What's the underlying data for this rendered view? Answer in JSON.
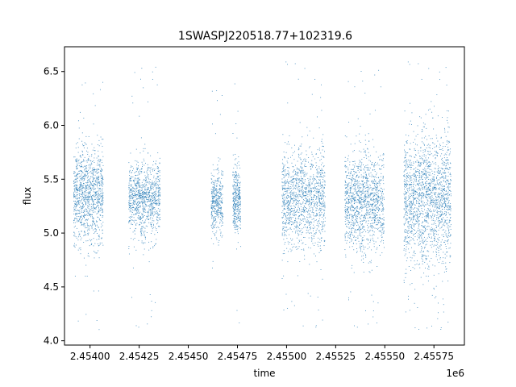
{
  "chart_data": {
    "type": "scatter",
    "title": "1SWASPJ220518.77+102319.6",
    "xlabel": "time",
    "ylabel": "flux",
    "x_offset_label": "1e6",
    "xlim": [
      2.45387,
      2.455905
    ],
    "ylim": [
      3.96,
      6.73
    ],
    "grid": false,
    "legend": "none",
    "color": "#1f77b4",
    "x_ticks": [
      {
        "value": 2.454,
        "label": "2.45400"
      },
      {
        "value": 2.45425,
        "label": "2.45425"
      },
      {
        "value": 2.4545,
        "label": "2.45450"
      },
      {
        "value": 2.45475,
        "label": "2.45475"
      },
      {
        "value": 2.455,
        "label": "2.45500"
      },
      {
        "value": 2.45525,
        "label": "2.45525"
      },
      {
        "value": 2.4555,
        "label": "2.45550"
      },
      {
        "value": 2.45575,
        "label": "2.45575"
      }
    ],
    "y_ticks": [
      {
        "value": 4.0,
        "label": "4.0"
      },
      {
        "value": 4.5,
        "label": "4.5"
      },
      {
        "value": 5.0,
        "label": "5.0"
      },
      {
        "value": 5.5,
        "label": "5.5"
      },
      {
        "value": 6.0,
        "label": "6.0"
      },
      {
        "value": 6.5,
        "label": "6.5"
      }
    ],
    "clusters": [
      {
        "x_range": [
          2.453915,
          2.454065
        ],
        "center": 5.35,
        "spread": 0.22,
        "min": 4.1,
        "max": 6.5,
        "points": 1100
      },
      {
        "x_range": [
          2.454195,
          2.454355
        ],
        "center": 5.32,
        "spread": 0.17,
        "min": 4.1,
        "max": 6.6,
        "points": 1000
      },
      {
        "x_range": [
          2.454615,
          2.454675
        ],
        "center": 5.28,
        "spread": 0.15,
        "min": 4.45,
        "max": 6.45,
        "points": 400
      },
      {
        "x_range": [
          2.454725,
          2.454765
        ],
        "center": 5.3,
        "spread": 0.16,
        "min": 4.1,
        "max": 6.6,
        "points": 350
      },
      {
        "x_range": [
          2.454975,
          2.455195
        ],
        "center": 5.32,
        "spread": 0.22,
        "min": 4.1,
        "max": 6.6,
        "points": 1300
      },
      {
        "x_range": [
          2.455295,
          2.455495
        ],
        "center": 5.28,
        "spread": 0.23,
        "min": 4.1,
        "max": 6.57,
        "points": 1300
      },
      {
        "x_range": [
          2.455595,
          2.455835
        ],
        "center": 5.32,
        "spread": 0.3,
        "min": 4.08,
        "max": 6.6,
        "points": 1800
      }
    ]
  }
}
